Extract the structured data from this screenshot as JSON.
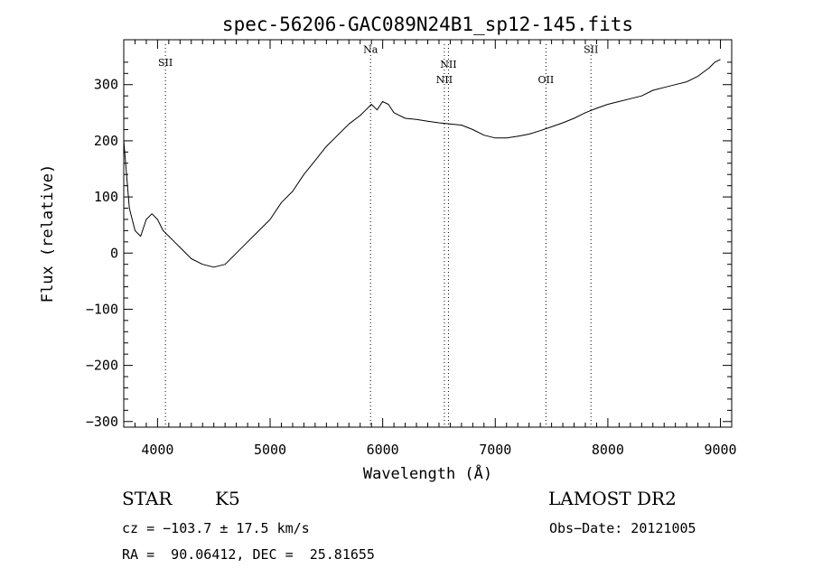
{
  "chart_data": {
    "type": "line",
    "title": "spec-56206-GAC089N24B1_sp12-145.fits",
    "xlabel": "Wavelength (Å)",
    "ylabel": "Flux (relative)",
    "xlim": [
      3700,
      9100
    ],
    "ylim": [
      -310,
      380
    ],
    "xticks": [
      4000,
      5000,
      6000,
      7000,
      8000,
      9000
    ],
    "yticks": [
      -300,
      -200,
      -100,
      0,
      100,
      200,
      300
    ],
    "grid": false,
    "line_color": "#000000",
    "lines": [
      {
        "label": "SII",
        "x": 4070,
        "label_y": 333
      },
      {
        "label": "Na",
        "x": 5892,
        "label_y": 357
      },
      {
        "label": "NII",
        "x": 6548,
        "label_y": 303
      },
      {
        "label": "NII",
        "x": 6584,
        "label_y": 330
      },
      {
        "label": "OII",
        "x": 7450,
        "label_y": 303
      },
      {
        "label": "SII",
        "x": 7850,
        "label_y": 357
      }
    ],
    "series": [
      {
        "x": [
          3700,
          3750,
          3800,
          3850,
          3900,
          3950,
          4000,
          4050,
          4100,
          4150,
          4200,
          4300,
          4400,
          4500,
          4600,
          4700,
          4800,
          4900,
          5000,
          5100,
          5200,
          5300,
          5400,
          5500,
          5600,
          5700,
          5800,
          5850,
          5900,
          5950,
          6000,
          6050,
          6100,
          6200,
          6300,
          6400,
          6500,
          6600,
          6700,
          6800,
          6900,
          7000,
          7100,
          7200,
          7300,
          7400,
          7500,
          7600,
          7700,
          7800,
          7900,
          8000,
          8100,
          8200,
          8300,
          8400,
          8500,
          8600,
          8700,
          8800,
          8900,
          8950,
          9000
        ],
        "y": [
          200,
          80,
          40,
          30,
          60,
          70,
          60,
          40,
          30,
          20,
          10,
          -10,
          -20,
          -25,
          -20,
          0,
          20,
          40,
          60,
          90,
          110,
          140,
          165,
          190,
          210,
          230,
          245,
          255,
          265,
          255,
          270,
          265,
          250,
          240,
          238,
          235,
          232,
          230,
          228,
          220,
          210,
          205,
          205,
          208,
          212,
          218,
          225,
          232,
          240,
          250,
          258,
          265,
          270,
          275,
          280,
          290,
          295,
          300,
          305,
          315,
          330,
          340,
          345
        ]
      }
    ]
  },
  "footer": {
    "class_label": "STAR",
    "subclass": "K5",
    "survey": "LAMOST DR2",
    "cz": "cz = −103.7 ± 17.5 km/s",
    "obs_date": "Obs−Date: 20121005",
    "coords": "RA =  90.06412, DEC =  25.81655"
  }
}
